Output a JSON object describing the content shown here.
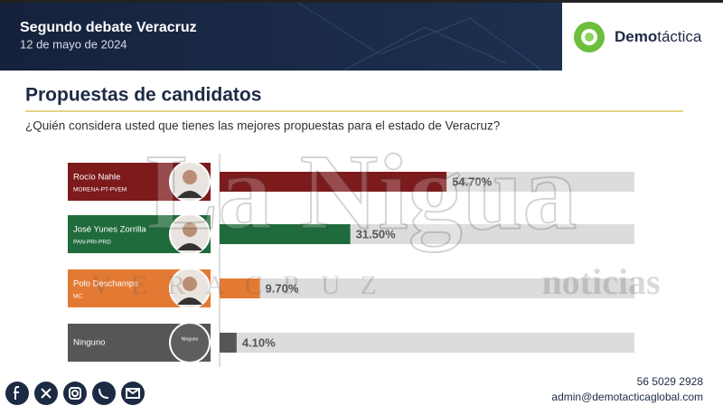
{
  "header": {
    "title": "Segundo debate Veracruz",
    "date": "12 de mayo de 2024",
    "logo_prefix": "Demo",
    "logo_suffix": "táctica"
  },
  "watermark": {
    "brand": "La Nigua",
    "region": "VERACRUZ",
    "section": "noticias"
  },
  "chart_data": {
    "type": "bar",
    "orientation": "horizontal",
    "title": "Propuestas de candidatos",
    "subtitle": "¿Quién considera usted que tienes las mejores propuestas para el estado de Veracruz?",
    "categories": [
      "Rocío Nahle",
      "José Yunes Zorrilla",
      "Polo Deschamps",
      "Ninguno"
    ],
    "parties": [
      "MORENA-PT-PVEM",
      "PAN-PRI-PRD",
      "MC",
      null
    ],
    "values": [
      54.7,
      31.5,
      9.7,
      4.1
    ],
    "value_labels": [
      "54.70%",
      "31.50%",
      "9.70%",
      "4.10%"
    ],
    "colors": [
      "#7d1a1c",
      "#1f6b3b",
      "#e37a34",
      "#565656"
    ],
    "track_color": "#dcdcdc",
    "xlim": [
      0,
      100
    ]
  },
  "footer": {
    "phone": "56 5029 2928",
    "email": "admin@demotacticaglobal.com"
  }
}
